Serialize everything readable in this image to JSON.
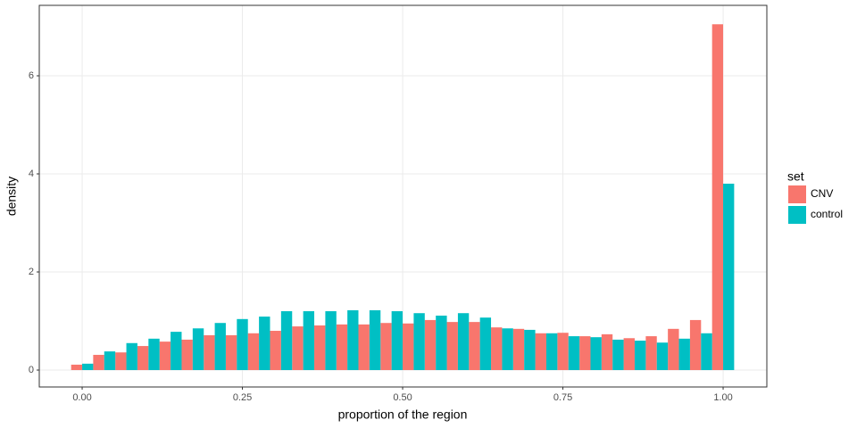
{
  "chart_data": {
    "type": "histogram",
    "x_label": "proportion of the region",
    "y_label": "density",
    "legend_title": "set",
    "legend_position": "right",
    "grid": true,
    "bins": [
      -0.0172,
      0.0172,
      0.0517,
      0.0862,
      0.1207,
      0.1552,
      0.1897,
      0.2241,
      0.2586,
      0.2931,
      0.3276,
      0.3621,
      0.3966,
      0.431,
      0.4655,
      0.5,
      0.5345,
      0.569,
      0.6034,
      0.6379,
      0.6724,
      0.7069,
      0.7414,
      0.7759,
      0.8103,
      0.8448,
      0.8793,
      0.9138,
      0.9483,
      0.9828,
      1.0172
    ],
    "series": [
      {
        "name": "CNV",
        "color": "#F8766D",
        "values": [
          0.11,
          0.31,
          0.36,
          0.49,
          0.58,
          0.62,
          0.71,
          0.71,
          0.75,
          0.8,
          0.89,
          0.91,
          0.93,
          0.93,
          0.96,
          0.95,
          1.02,
          0.98,
          0.98,
          0.87,
          0.84,
          0.75,
          0.76,
          0.69,
          0.73,
          0.65,
          0.69,
          0.84,
          1.02,
          7.05
        ]
      },
      {
        "name": "control",
        "color": "#00BFC4",
        "values": [
          0.13,
          0.38,
          0.55,
          0.64,
          0.78,
          0.85,
          0.96,
          1.04,
          1.09,
          1.2,
          1.2,
          1.2,
          1.22,
          1.22,
          1.2,
          1.16,
          1.11,
          1.16,
          1.07,
          0.85,
          0.82,
          0.75,
          0.69,
          0.67,
          0.62,
          0.6,
          0.56,
          0.64,
          0.75,
          3.8
        ]
      }
    ],
    "xlim": [
      -0.0669,
      1.0682
    ],
    "xticks": [
      {
        "value": 0,
        "label": "0.00"
      },
      {
        "value": 0.25,
        "label": "0.25"
      },
      {
        "value": 0.5,
        "label": "0.50"
      },
      {
        "value": 0.75,
        "label": "0.75"
      },
      {
        "value": 1,
        "label": "1.00"
      }
    ],
    "ylim": [
      -0.345,
      7.436
    ],
    "yticks": [
      0,
      2,
      4,
      6
    ]
  }
}
